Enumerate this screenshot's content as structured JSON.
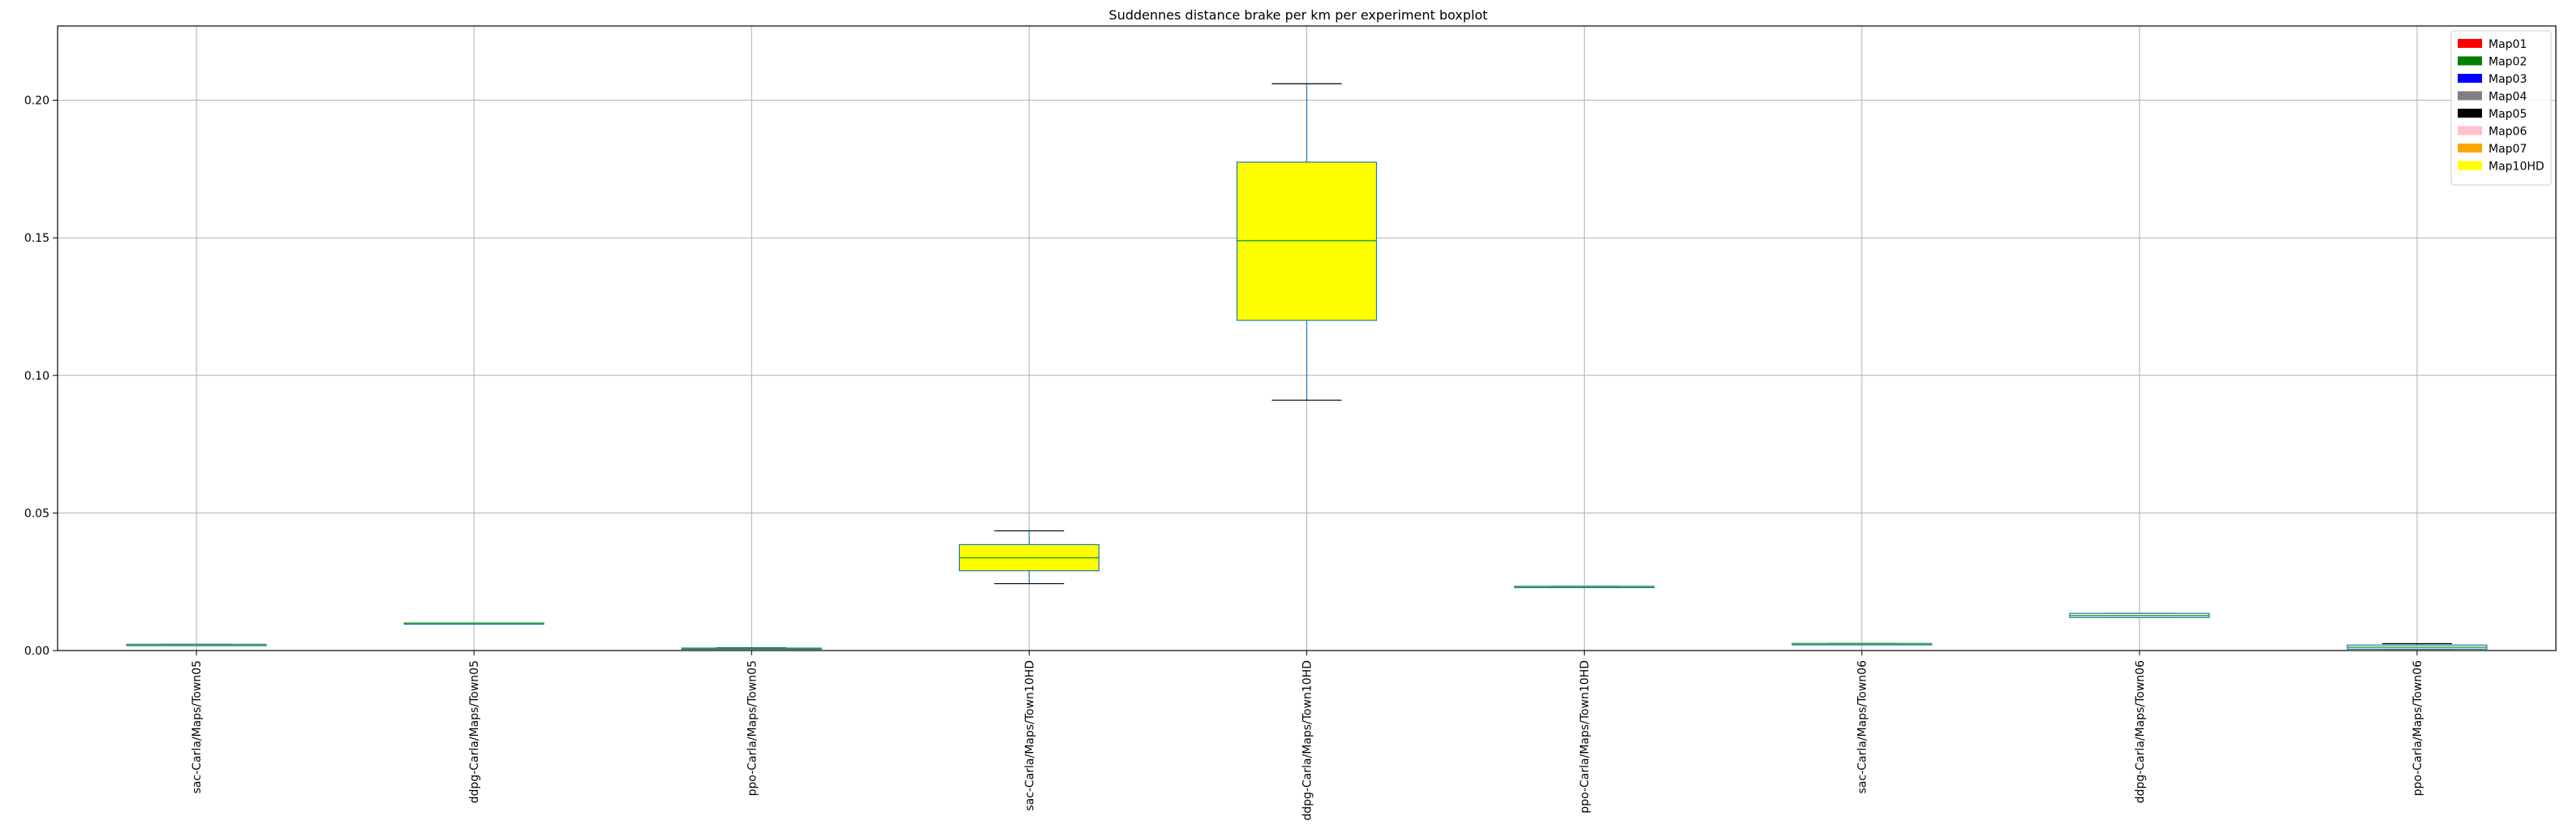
{
  "chart_data": {
    "type": "boxplot",
    "title": "Suddennes distance brake per km per experiment boxplot",
    "xlabel": "",
    "ylabel": "",
    "ylim": [
      0.0,
      0.227
    ],
    "yticks": [
      "0.00",
      "0.05",
      "0.10",
      "0.15",
      "0.20"
    ],
    "ytick_values": [
      0.0,
      0.05,
      0.1,
      0.15,
      0.2
    ],
    "grid": true,
    "legend_position": "top-right",
    "categories": [
      "sac-Carla/Maps/Town05",
      "ddpg-Carla/Maps/Town05",
      "ppo-Carla/Maps/Town05",
      "sac-Carla/Maps/Town10HD",
      "ddpg-Carla/Maps/Town10HD",
      "ppo-Carla/Maps/Town10HD",
      "sac-Carla/Maps/Town06",
      "ddpg-Carla/Maps/Town06",
      "ppo-Carla/Maps/Town06"
    ],
    "boxes": [
      {
        "whislo": 0.0022,
        "q1": 0.0022,
        "med": 0.0022,
        "q3": 0.0022,
        "whishi": 0.0022,
        "color": "#ffffff"
      },
      {
        "whislo": 0.01,
        "q1": 0.01,
        "med": 0.01,
        "q3": 0.01,
        "whishi": 0.01,
        "color": "#ffffff"
      },
      {
        "whislo": 0.0005,
        "q1": 0.0005,
        "med": 0.0007,
        "q3": 0.0009,
        "whishi": 0.001,
        "color": "#ffffff"
      },
      {
        "whislo": 0.0243,
        "q1": 0.029,
        "med": 0.0337,
        "q3": 0.0385,
        "whishi": 0.0435,
        "color": "#ffff00"
      },
      {
        "whislo": 0.091,
        "q1": 0.12,
        "med": 0.149,
        "q3": 0.1775,
        "whishi": 0.206,
        "color": "#ffff00"
      },
      {
        "whislo": 0.0233,
        "q1": 0.0233,
        "med": 0.0233,
        "q3": 0.0233,
        "whishi": 0.0233,
        "color": "#ffffff"
      },
      {
        "whislo": 0.0025,
        "q1": 0.0025,
        "med": 0.0025,
        "q3": 0.0025,
        "whishi": 0.0025,
        "color": "#ffffff"
      },
      {
        "whislo": 0.012,
        "q1": 0.012,
        "med": 0.0127,
        "q3": 0.0135,
        "whishi": 0.0135,
        "color": "#ffffff"
      },
      {
        "whislo": 0.0005,
        "q1": 0.0005,
        "med": 0.0012,
        "q3": 0.002,
        "whishi": 0.0025,
        "color": "#ffffff"
      }
    ],
    "legend": [
      {
        "label": "Map01",
        "color": "#ff0000"
      },
      {
        "label": "Map02",
        "color": "#008000"
      },
      {
        "label": "Map03",
        "color": "#0000ff"
      },
      {
        "label": "Map04",
        "color": "#808080"
      },
      {
        "label": "Map05",
        "color": "#000000"
      },
      {
        "label": "Map06",
        "color": "#ffc0cb"
      },
      {
        "label": "Map07",
        "color": "#ffa500"
      },
      {
        "label": "Map10HD",
        "color": "#ffff00"
      }
    ],
    "colors": {
      "box_edge": "#1f77b4",
      "median": "#2ca02c",
      "whisker": "#1f77b4",
      "cap": "#000000",
      "grid": "#b0b0b0"
    }
  }
}
